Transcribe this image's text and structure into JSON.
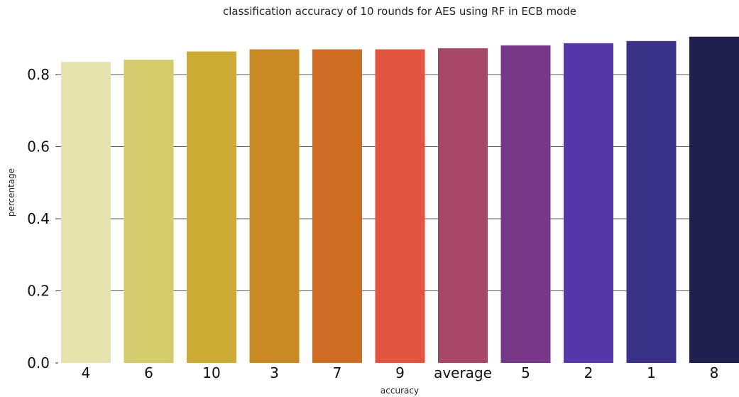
{
  "chart_data": {
    "type": "bar",
    "title": "classification accuracy of 10 rounds for AES using RF in ECB mode",
    "xlabel": "accuracy",
    "ylabel": "percentage",
    "categories": [
      "4",
      "6",
      "10",
      "3",
      "7",
      "9",
      "average",
      "5",
      "2",
      "1",
      "8"
    ],
    "values": [
      0.835,
      0.841,
      0.864,
      0.87,
      0.87,
      0.87,
      0.873,
      0.881,
      0.887,
      0.893,
      0.905
    ],
    "colors": [
      "#e5e2ad",
      "#d3cb6c",
      "#cbab33",
      "#c98a23",
      "#d06d25",
      "#e15540",
      "#a74767",
      "#773888",
      "#5637a9",
      "#3a3286",
      "#1f1f50"
    ],
    "ylim": [
      0,
      0.92
    ],
    "yticks": [
      "0.0",
      "0.2",
      "0.4",
      "0.6",
      "0.8"
    ],
    "ytick_values": [
      0,
      0.2,
      0.4,
      0.6,
      0.8
    ],
    "grid": "horizontal",
    "legend": "none"
  }
}
